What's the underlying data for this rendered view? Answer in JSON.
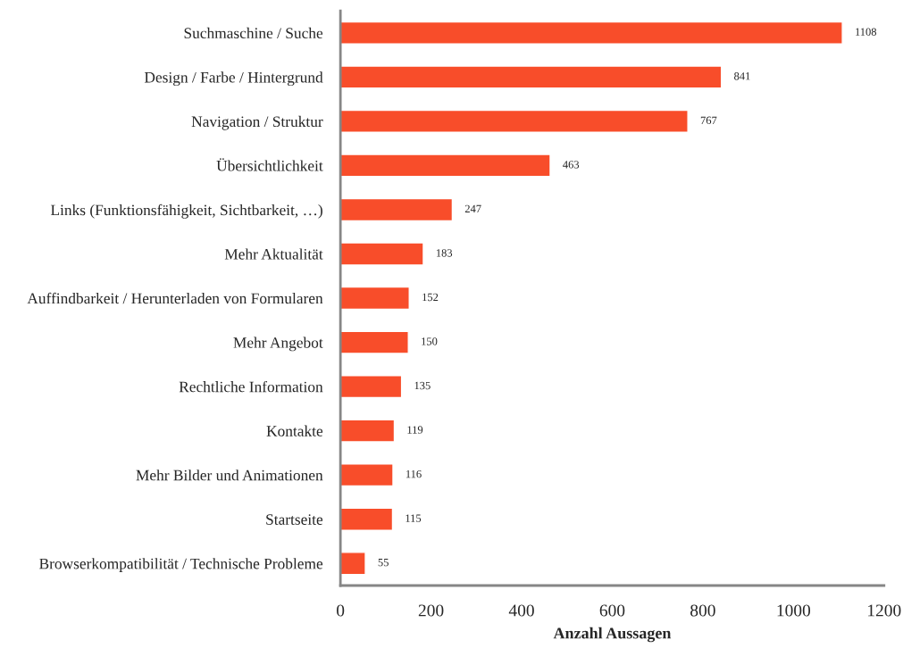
{
  "chart_data": {
    "type": "bar",
    "orientation": "horizontal",
    "categories": [
      "Suchmaschine / Suche",
      "Design / Farbe / Hintergrund",
      "Navigation / Struktur",
      "Übersichtlichkeit",
      "Links (Funktionsfähigkeit, Sichtbarkeit, …)",
      "Mehr Aktualität",
      "Auffindbarkeit / Herunterladen von Formularen",
      "Mehr Angebot",
      "Rechtliche Information",
      "Kontakte",
      "Mehr Bilder und Animationen",
      "Startseite",
      "Browserkompatibilität / Technische Probleme"
    ],
    "values": [
      1108,
      841,
      767,
      463,
      247,
      183,
      152,
      150,
      135,
      119,
      116,
      115,
      55
    ],
    "color": "#f84d2a",
    "xlim": [
      0,
      1200
    ],
    "xticks": [
      0,
      200,
      400,
      600,
      800,
      1000,
      1200
    ],
    "xlabel": "Anzahl Aussagen",
    "data_labels": true,
    "grid": false,
    "legend": false
  }
}
